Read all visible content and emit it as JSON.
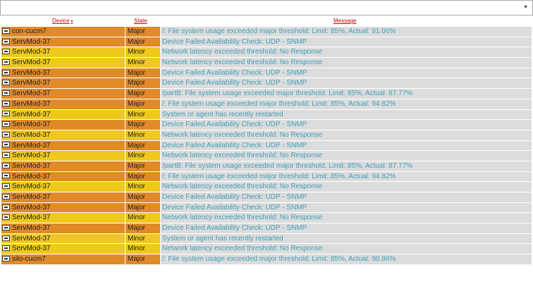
{
  "filter": {
    "selected": ""
  },
  "header": {
    "device": "Device",
    "state": "State",
    "message": "Message",
    "sort_indicator": "▾"
  },
  "colors": {
    "major": "#e08a2a",
    "minor": "#efc81c",
    "message_bg": "#dcdcdc",
    "message_text": "#3e9fb8",
    "header_link": "#cc0000"
  },
  "rows": [
    {
      "device": "con-cucm7",
      "state": "Major",
      "message": "/: File system usage exceeded major threshold: Limit: 85%, Actual: 91.06%"
    },
    {
      "device": "ServMod-37",
      "state": "Major",
      "message": "Device Failed Availability Check: UDP - SNMP"
    },
    {
      "device": "ServMod-37",
      "state": "Minor",
      "message": "Network latency exceeded threshold: No Response"
    },
    {
      "device": "ServMod-37",
      "state": "Minor",
      "message": "Network latency exceeded threshold: No Response"
    },
    {
      "device": "ServMod-37",
      "state": "Major",
      "message": "Device Failed Availability Check: UDP - SNMP"
    },
    {
      "device": "ServMod-37",
      "state": "Major",
      "message": "Device Failed Availability Check: UDP - SNMP"
    },
    {
      "device": "ServMod-37",
      "state": "Major",
      "message": "/partB: File system usage exceeded major threshold: Limit: 85%, Actual: 87.77%"
    },
    {
      "device": "ServMod-37",
      "state": "Major",
      "message": "/: File system usage exceeded major threshold: Limit: 85%, Actual: 94.82%"
    },
    {
      "device": "ServMod-37",
      "state": "Minor",
      "message": "System or agent has recently restarted"
    },
    {
      "device": "ServMod-37",
      "state": "Major",
      "message": "Device Failed Availability Check: UDP - SNMP"
    },
    {
      "device": "ServMod-37",
      "state": "Minor",
      "message": "Network latency exceeded threshold: No Response"
    },
    {
      "device": "ServMod-37",
      "state": "Major",
      "message": "Device Failed Availability Check: UDP - SNMP"
    },
    {
      "device": "ServMod-37",
      "state": "Minor",
      "message": "Network latency exceeded threshold: No Response"
    },
    {
      "device": "ServMod-37",
      "state": "Major",
      "message": "/partB: File system usage exceeded major threshold: Limit: 85%, Actual: 87.77%"
    },
    {
      "device": "ServMod-37",
      "state": "Major",
      "message": "/: File system usage exceeded major threshold: Limit: 85%, Actual: 94.82%"
    },
    {
      "device": "ServMod-37",
      "state": "Minor",
      "message": "Network latency exceeded threshold: No Response"
    },
    {
      "device": "ServMod-37",
      "state": "Major",
      "message": "Device Failed Availability Check: UDP - SNMP"
    },
    {
      "device": "ServMod-37",
      "state": "Major",
      "message": "Device Failed Availability Check: UDP - SNMP"
    },
    {
      "device": "ServMod-37",
      "state": "Minor",
      "message": "Network latency exceeded threshold: No Response"
    },
    {
      "device": "ServMod-37",
      "state": "Major",
      "message": "Device Failed Availability Check: UDP - SNMP"
    },
    {
      "device": "ServMod-37",
      "state": "Minor",
      "message": "System or agent has recently restarted"
    },
    {
      "device": "ServMod-37",
      "state": "Minor",
      "message": "Network latency exceeded threshold: No Response"
    },
    {
      "device": "silo-cucm7",
      "state": "Major",
      "message": "/: File system usage exceeded major threshold: Limit: 85%, Actual: 90.86%"
    }
  ]
}
